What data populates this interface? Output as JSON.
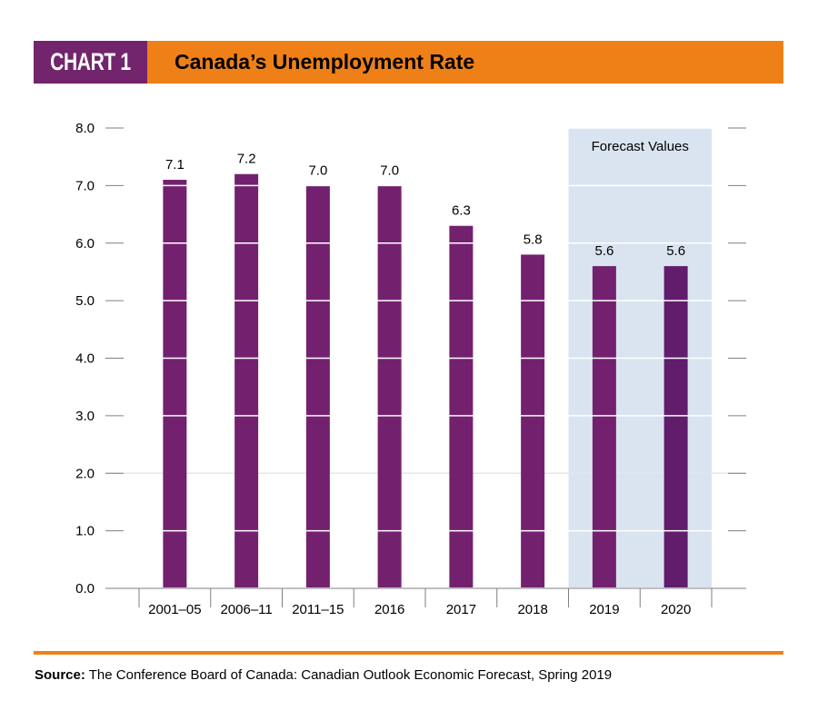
{
  "header": {
    "chart_tag": "CHART 1",
    "title": "Canada’s Unemployment Rate"
  },
  "colors": {
    "header_tag_bg": "#72246c",
    "header_bg": "#ef8017",
    "bar": "#73216f",
    "bar_forecast_dark": "#611c6c",
    "forecast_region": "#d9e4f0",
    "rule": "#ef8017"
  },
  "footer": {
    "source_label": "Source:",
    "source_text": " The Conference Board of Canada: Canadian Outlook Economic Forecast, Spring 2019"
  },
  "chart_data": {
    "type": "bar",
    "title": "Canada’s Unemployment Rate",
    "xlabel": "",
    "ylabel": "",
    "categories": [
      "2001–05",
      "2006–11",
      "2011–15",
      "2016",
      "2017",
      "2018",
      "2019",
      "2020"
    ],
    "values": [
      7.1,
      7.2,
      7.0,
      7.0,
      6.3,
      5.8,
      5.6,
      5.6
    ],
    "data_labels": [
      "7.1",
      "7.2",
      "7.0",
      "7.0",
      "6.3",
      "5.8",
      "5.6",
      "5.6"
    ],
    "ylim": [
      0,
      8
    ],
    "yticks": [
      0,
      1,
      2,
      3,
      4,
      5,
      6,
      7,
      8
    ],
    "ytick_labels": [
      "0.0",
      "1.0",
      "2.0",
      "3.0",
      "4.0",
      "5.0",
      "6.0",
      "7.0",
      "8.0"
    ],
    "grid": true,
    "forecast": {
      "label": "Forecast Values",
      "categories": [
        "2019",
        "2020"
      ]
    },
    "legend": "none"
  }
}
